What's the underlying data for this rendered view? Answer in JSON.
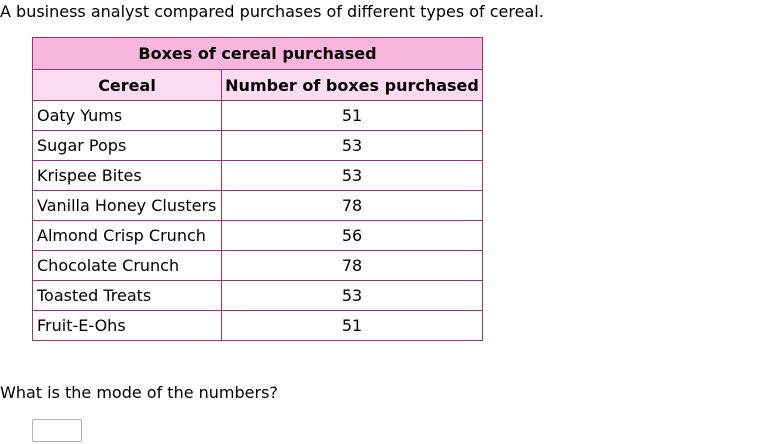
{
  "intro_text": "A business analyst compared purchases of different types of cereal.",
  "table": {
    "title": "Boxes of cereal purchased",
    "headers": [
      "Cereal",
      "Number of boxes purchased"
    ],
    "rows": [
      {
        "name": "Oaty Yums",
        "boxes": "51"
      },
      {
        "name": "Sugar Pops",
        "boxes": "53"
      },
      {
        "name": "Krispee Bites",
        "boxes": "53"
      },
      {
        "name": "Vanilla Honey Clusters",
        "boxes": "78"
      },
      {
        "name": "Almond Crisp Crunch",
        "boxes": "56"
      },
      {
        "name": "Chocolate Crunch",
        "boxes": "78"
      },
      {
        "name": "Toasted Treats",
        "boxes": "53"
      },
      {
        "name": "Fruit-E-Ohs",
        "boxes": "51"
      }
    ]
  },
  "question_text": "What is the mode of the numbers?",
  "answer": {
    "value": ""
  }
}
